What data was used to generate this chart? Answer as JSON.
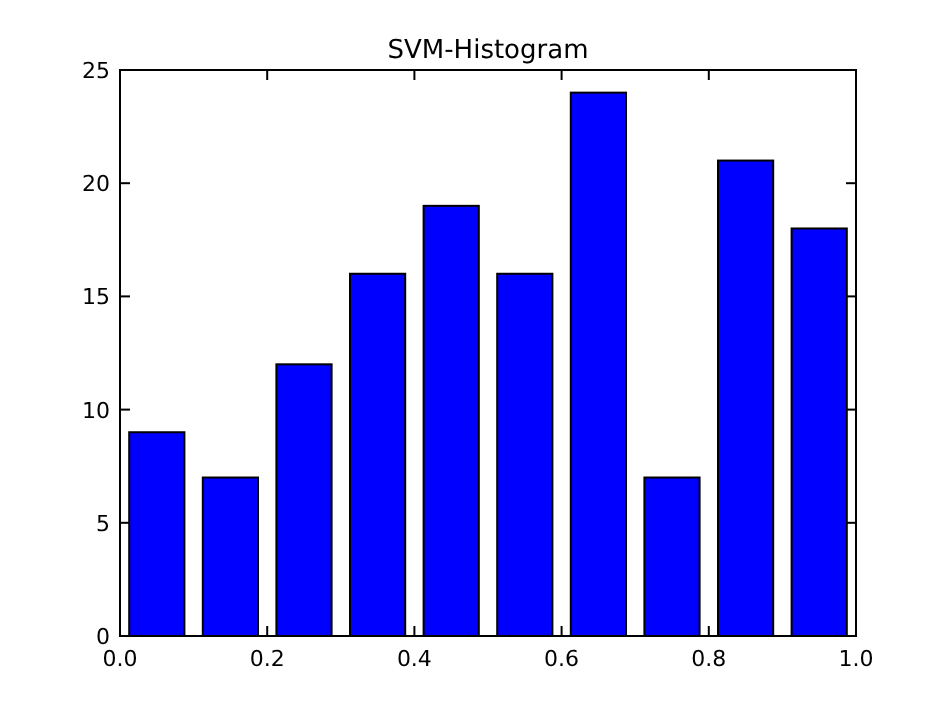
{
  "chart_data": {
    "type": "histogram",
    "title": "SVM-Histogram",
    "bins": [
      0,
      0.1,
      0.2,
      0.3,
      0.4,
      0.5,
      0.6,
      0.7,
      0.8,
      0.9,
      1.0
    ],
    "values": [
      9,
      7,
      12,
      16,
      19,
      16,
      24,
      7,
      21,
      18
    ],
    "color": "#0000ff",
    "xlim": [
      0,
      1
    ],
    "xticks": [
      {
        "value": 0,
        "label": "0.0"
      },
      {
        "value": 0.2,
        "label": "0.2"
      },
      {
        "value": 0.4,
        "label": "0.4"
      },
      {
        "value": 0.6,
        "label": "0.6"
      },
      {
        "value": 0.8,
        "label": "0.8"
      },
      {
        "value": 1,
        "label": "1.0"
      }
    ],
    "ylim": [
      0,
      25
    ],
    "yticks": [
      0,
      5,
      10,
      15,
      20,
      25
    ],
    "grid": false
  }
}
